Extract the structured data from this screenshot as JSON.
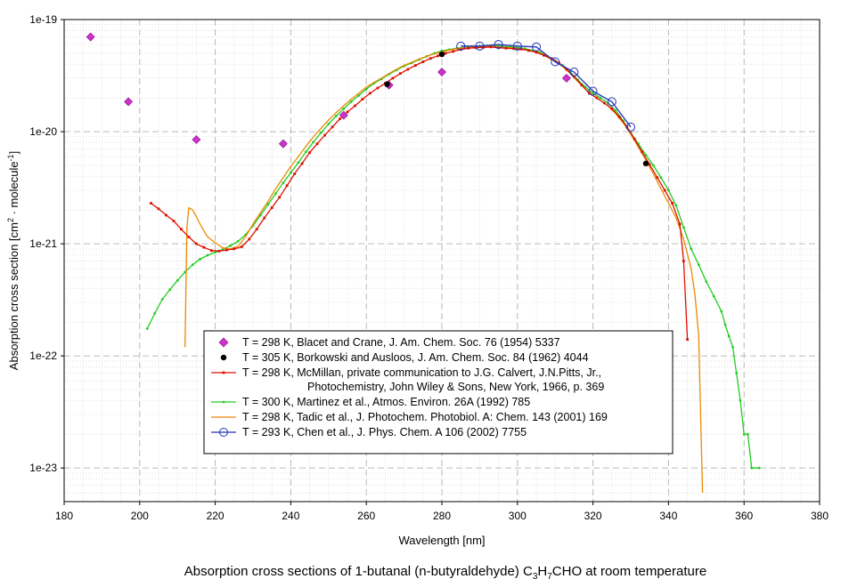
{
  "chart_data": {
    "type": "scatter",
    "title": "Absorption cross sections of 1-butanal (n-butyraldehyde) C3H7CHO at room temperature",
    "title_parts": {
      "lead": "Absorption cross sections of 1-butanal (n-butyraldehyde) C",
      "sub1": "3",
      "mid": "H",
      "sub2": "7",
      "tail": "CHO at room temperature"
    },
    "xlabel": "Wavelength [nm]",
    "ylabel_parts": {
      "lead": "Absorption cross section [cm",
      "sup1": "2",
      "mid": " · molecule",
      "sup2": "-1",
      "tail": "]"
    },
    "xlim": [
      180,
      380
    ],
    "ylim_log10": [
      -23.3,
      -19
    ],
    "yscale": "log",
    "x_ticks": [
      "180",
      "200",
      "220",
      "240",
      "260",
      "280",
      "300",
      "320",
      "340",
      "360",
      "380"
    ],
    "y_ticks": [
      {
        "label": "1e-19",
        "exp": -19
      },
      {
        "label": "1e-20",
        "exp": -20
      },
      {
        "label": "1e-21",
        "exp": -21
      },
      {
        "label": "1e-22",
        "exp": -22
      },
      {
        "label": "1e-23",
        "exp": -23
      }
    ],
    "grid": true,
    "legend_position": "center-bottom",
    "series": [
      {
        "name": "T = 298 K, Blacet and Crane, J. Am. Chem. Soc. 76 (1954) 5337",
        "legend_lines": [
          "T = 298 K, Blacet and Crane, J. Am. Chem. Soc. 76 (1954) 5337"
        ],
        "color": "#cc33cc",
        "marker": "diamond",
        "line": false,
        "points": [
          [
            187,
            7e-20
          ],
          [
            197,
            1.85e-20
          ],
          [
            215,
            8.5e-21
          ],
          [
            238,
            7.8e-21
          ],
          [
            254,
            1.4e-20
          ],
          [
            266,
            2.6e-20
          ],
          [
            280,
            3.4e-20
          ],
          [
            313,
            3e-20
          ]
        ]
      },
      {
        "name": "T = 305 K, Borkowski and Ausloos, J. Am. Chem. Soc. 84 (1962) 4044",
        "legend_lines": [
          "T = 305 K, Borkowski and Ausloos, J. Am. Chem. Soc. 84 (1962) 4044"
        ],
        "color": "#000000",
        "marker": "circle-filled",
        "line": false,
        "points": [
          [
            265.5,
            2.65e-20
          ],
          [
            280,
            4.9e-20
          ],
          [
            334,
            5.2e-21
          ]
        ]
      },
      {
        "name": "T = 298 K, McMillan, private communication to J.G. Calvert, J.N.Pitts, Jr., Photochemistry, John Wiley & Sons, New York, 1966, p. 369",
        "legend_lines": [
          "T = 298 K, McMillan, private communication to J.G. Calvert, J.N.Pitts, Jr.,",
          "Photochemistry, John Wiley & Sons, New York, 1966, p. 369"
        ],
        "color": "#dd1100",
        "marker": "small-square",
        "line": true,
        "points": [
          [
            203,
            2.3e-21
          ],
          [
            205,
            2.05e-21
          ],
          [
            207,
            1.8e-21
          ],
          [
            209,
            1.6e-21
          ],
          [
            211,
            1.35e-21
          ],
          [
            213,
            1.15e-21
          ],
          [
            215,
            1e-21
          ],
          [
            217,
            9.3e-22
          ],
          [
            219,
            8.7e-22
          ],
          [
            221,
            8.6e-22
          ],
          [
            223,
            8.8e-22
          ],
          [
            225,
            9e-22
          ],
          [
            227,
            9.4e-22
          ],
          [
            229,
            1.1e-21
          ],
          [
            231,
            1.35e-21
          ],
          [
            233,
            1.7e-21
          ],
          [
            235,
            2.1e-21
          ],
          [
            237,
            2.6e-21
          ],
          [
            239,
            3.3e-21
          ],
          [
            241,
            4.2e-21
          ],
          [
            243,
            5.2e-21
          ],
          [
            245,
            6.5e-21
          ],
          [
            247,
            7.8e-21
          ],
          [
            249,
            9.3e-21
          ],
          [
            251,
            1.1e-20
          ],
          [
            253,
            1.3e-20
          ],
          [
            255,
            1.5e-20
          ],
          [
            257,
            1.7e-20
          ],
          [
            259,
            1.95e-20
          ],
          [
            261,
            2.2e-20
          ],
          [
            263,
            2.45e-20
          ],
          [
            265,
            2.7e-20
          ],
          [
            267,
            3e-20
          ],
          [
            269,
            3.3e-20
          ],
          [
            271,
            3.6e-20
          ],
          [
            273,
            3.9e-20
          ],
          [
            275,
            4.2e-20
          ],
          [
            277,
            4.5e-20
          ],
          [
            279,
            4.75e-20
          ],
          [
            281,
            5e-20
          ],
          [
            283,
            5.2e-20
          ],
          [
            285,
            5.4e-20
          ],
          [
            287,
            5.55e-20
          ],
          [
            289,
            5.6e-20
          ],
          [
            291,
            5.65e-20
          ],
          [
            293,
            5.7e-20
          ],
          [
            295,
            5.6e-20
          ],
          [
            297,
            5.55e-20
          ],
          [
            299,
            5.5e-20
          ],
          [
            301,
            5.45e-20
          ],
          [
            303,
            5.3e-20
          ],
          [
            305,
            5.1e-20
          ],
          [
            307,
            4.8e-20
          ],
          [
            309,
            4.5e-20
          ],
          [
            311,
            4.1e-20
          ],
          [
            313,
            3.6e-20
          ],
          [
            315,
            3.1e-20
          ],
          [
            317,
            2.6e-20
          ],
          [
            319,
            2.2e-20
          ],
          [
            321,
            2e-20
          ],
          [
            323,
            1.8e-20
          ],
          [
            325,
            1.6e-20
          ],
          [
            327,
            1.35e-20
          ],
          [
            329,
            1.1e-20
          ],
          [
            331,
            8.6e-21
          ],
          [
            333,
            6.6e-21
          ],
          [
            335,
            5.1e-21
          ],
          [
            337,
            3.9e-21
          ],
          [
            339,
            3e-21
          ],
          [
            341,
            2.3e-21
          ],
          [
            343,
            1.5e-21
          ],
          [
            344,
            7e-22
          ],
          [
            345,
            1.4e-22
          ]
        ]
      },
      {
        "name": "T = 300 K, Martinez et al., Atmos. Environ. 26A (1992) 785",
        "legend_lines": [
          "T = 300 K, Martinez et al., Atmos. Environ. 26A (1992) 785"
        ],
        "color": "#22cc22",
        "marker": "small-dot",
        "line": true,
        "points": [
          [
            202,
            1.75e-22
          ],
          [
            204,
            2.4e-22
          ],
          [
            206,
            3.2e-22
          ],
          [
            208,
            3.9e-22
          ],
          [
            210,
            4.7e-22
          ],
          [
            212,
            5.6e-22
          ],
          [
            214,
            6.5e-22
          ],
          [
            216,
            7.3e-22
          ],
          [
            218,
            7.9e-22
          ],
          [
            220,
            8.4e-22
          ],
          [
            222,
            8.9e-22
          ],
          [
            224,
            9.6e-22
          ],
          [
            226,
            1.05e-21
          ],
          [
            228,
            1.2e-21
          ],
          [
            230,
            1.45e-21
          ],
          [
            232,
            1.8e-21
          ],
          [
            234,
            2.25e-21
          ],
          [
            236,
            2.8e-21
          ],
          [
            238,
            3.5e-21
          ],
          [
            240,
            4.3e-21
          ],
          [
            242,
            5.3e-21
          ],
          [
            244,
            6.6e-21
          ],
          [
            246,
            8.1e-21
          ],
          [
            248,
            9.8e-21
          ],
          [
            250,
            1.17e-20
          ],
          [
            252,
            1.38e-20
          ],
          [
            254,
            1.6e-20
          ],
          [
            256,
            1.85e-20
          ],
          [
            258,
            2.1e-20
          ],
          [
            260,
            2.4e-20
          ],
          [
            262,
            2.7e-20
          ],
          [
            264,
            2.95e-20
          ],
          [
            266,
            3.25e-20
          ],
          [
            268,
            3.55e-20
          ],
          [
            270,
            3.85e-20
          ],
          [
            272,
            4.1e-20
          ],
          [
            274,
            4.4e-20
          ],
          [
            276,
            4.7e-20
          ],
          [
            278,
            5e-20
          ],
          [
            280,
            5.25e-20
          ],
          [
            282,
            5.4e-20
          ],
          [
            284,
            5.55e-20
          ],
          [
            286,
            5.65e-20
          ],
          [
            288,
            5.75e-20
          ],
          [
            290,
            5.8e-20
          ],
          [
            292,
            5.85e-20
          ],
          [
            294,
            5.9e-20
          ],
          [
            296,
            5.8e-20
          ],
          [
            298,
            5.7e-20
          ],
          [
            300,
            5.65e-20
          ],
          [
            302,
            5.5e-20
          ],
          [
            304,
            5.3e-20
          ],
          [
            306,
            5.1e-20
          ],
          [
            308,
            4.7e-20
          ],
          [
            310,
            4.3e-20
          ],
          [
            312,
            3.9e-20
          ],
          [
            314,
            3.4e-20
          ],
          [
            316,
            2.9e-20
          ],
          [
            318,
            2.5e-20
          ],
          [
            320,
            2.2e-20
          ],
          [
            322,
            2e-20
          ],
          [
            324,
            1.8e-20
          ],
          [
            326,
            1.55e-20
          ],
          [
            328,
            1.25e-20
          ],
          [
            330,
            9.8e-21
          ],
          [
            332,
            7.8e-21
          ],
          [
            334,
            6.2e-21
          ],
          [
            336,
            5e-21
          ],
          [
            338,
            3.9e-21
          ],
          [
            340,
            3e-21
          ],
          [
            342,
            2.2e-21
          ],
          [
            344,
            1.4e-21
          ],
          [
            346,
            9e-22
          ],
          [
            348,
            6.5e-22
          ],
          [
            350,
            4.6e-22
          ],
          [
            352,
            3.4e-22
          ],
          [
            354,
            2.5e-22
          ],
          [
            355,
            1.9e-22
          ],
          [
            356,
            1.5e-22
          ],
          [
            357,
            1.2e-22
          ],
          [
            358,
            7e-23
          ],
          [
            359,
            4e-23
          ],
          [
            360,
            2e-23
          ],
          [
            361,
            2e-23
          ],
          [
            362,
            1e-23
          ],
          [
            364,
            1e-23
          ]
        ]
      },
      {
        "name": "T = 298 K, Tadic et al., J. Photochem. Photobiol. A: Chem. 143 (2001) 169",
        "legend_lines": [
          "T = 298 K, Tadic et al., J. Photochem. Photobiol. A: Chem. 143 (2001) 169"
        ],
        "color": "#ee8800",
        "marker": "none",
        "line": true,
        "points": [
          [
            212,
            1.2e-22
          ],
          [
            212.5,
            1.4e-21
          ],
          [
            213,
            2.1e-21
          ],
          [
            214,
            2e-21
          ],
          [
            215,
            1.75e-21
          ],
          [
            216,
            1.5e-21
          ],
          [
            217,
            1.3e-21
          ],
          [
            218,
            1.15e-21
          ],
          [
            220,
            1.02e-21
          ],
          [
            222,
            9.2e-22
          ],
          [
            224,
            9e-22
          ],
          [
            226,
            9.5e-22
          ],
          [
            228,
            1.15e-21
          ],
          [
            230,
            1.5e-21
          ],
          [
            232,
            1.9e-21
          ],
          [
            234,
            2.4e-21
          ],
          [
            236,
            3.1e-21
          ],
          [
            238,
            3.9e-21
          ],
          [
            240,
            4.9e-21
          ],
          [
            242,
            6e-21
          ],
          [
            244,
            7.4e-21
          ],
          [
            246,
            9e-21
          ],
          [
            248,
            1.07e-20
          ],
          [
            250,
            1.27e-20
          ],
          [
            252,
            1.48e-20
          ],
          [
            254,
            1.7e-20
          ],
          [
            256,
            1.95e-20
          ],
          [
            258,
            2.2e-20
          ],
          [
            260,
            2.5e-20
          ],
          [
            262,
            2.75e-20
          ],
          [
            264,
            3e-20
          ],
          [
            266,
            3.3e-20
          ],
          [
            268,
            3.6e-20
          ],
          [
            270,
            3.9e-20
          ],
          [
            272,
            4.15e-20
          ],
          [
            274,
            4.45e-20
          ],
          [
            276,
            4.7e-20
          ],
          [
            278,
            4.95e-20
          ],
          [
            280,
            5.15e-20
          ],
          [
            282,
            5.35e-20
          ],
          [
            284,
            5.5e-20
          ],
          [
            286,
            5.6e-20
          ],
          [
            288,
            5.65e-20
          ],
          [
            290,
            5.7e-20
          ],
          [
            292,
            5.75e-20
          ],
          [
            294,
            5.75e-20
          ],
          [
            296,
            5.65e-20
          ],
          [
            298,
            5.6e-20
          ],
          [
            300,
            5.5e-20
          ],
          [
            302,
            5.4e-20
          ],
          [
            304,
            5.2e-20
          ],
          [
            306,
            5e-20
          ],
          [
            308,
            4.6e-20
          ],
          [
            310,
            4.2e-20
          ],
          [
            312,
            3.8e-20
          ],
          [
            314,
            3.3e-20
          ],
          [
            316,
            2.8e-20
          ],
          [
            318,
            2.4e-20
          ],
          [
            320,
            2.1e-20
          ],
          [
            322,
            1.9e-20
          ],
          [
            324,
            1.7e-20
          ],
          [
            326,
            1.45e-20
          ],
          [
            328,
            1.2e-20
          ],
          [
            330,
            9.5e-21
          ],
          [
            332,
            7.3e-21
          ],
          [
            334,
            5.6e-21
          ],
          [
            336,
            4.2e-21
          ],
          [
            338,
            3.1e-21
          ],
          [
            340,
            2.3e-21
          ],
          [
            342,
            1.7e-21
          ],
          [
            344,
            1.1e-21
          ],
          [
            346,
            6e-22
          ],
          [
            347,
            3.5e-22
          ],
          [
            348,
            1.5e-22
          ],
          [
            348.5,
            3e-23
          ],
          [
            349,
            6e-24
          ]
        ]
      },
      {
        "name": "T = 293 K, Chen et al., J. Phys. Chem. A 106 (2002) 7755",
        "legend_lines": [
          "T = 293 K, Chen et al., J. Phys. Chem. A 106 (2002) 7755"
        ],
        "color": "#2233bb",
        "marker": "open-circle",
        "line": true,
        "points": [
          [
            285,
            5.8e-20
          ],
          [
            290,
            5.8e-20
          ],
          [
            295,
            6e-20
          ],
          [
            300,
            5.8e-20
          ],
          [
            305,
            5.7e-20
          ],
          [
            310,
            4.2e-20
          ],
          [
            315,
            3.4e-20
          ],
          [
            320,
            2.3e-20
          ],
          [
            325,
            1.85e-20
          ],
          [
            330,
            1.1e-20
          ]
        ]
      }
    ]
  }
}
